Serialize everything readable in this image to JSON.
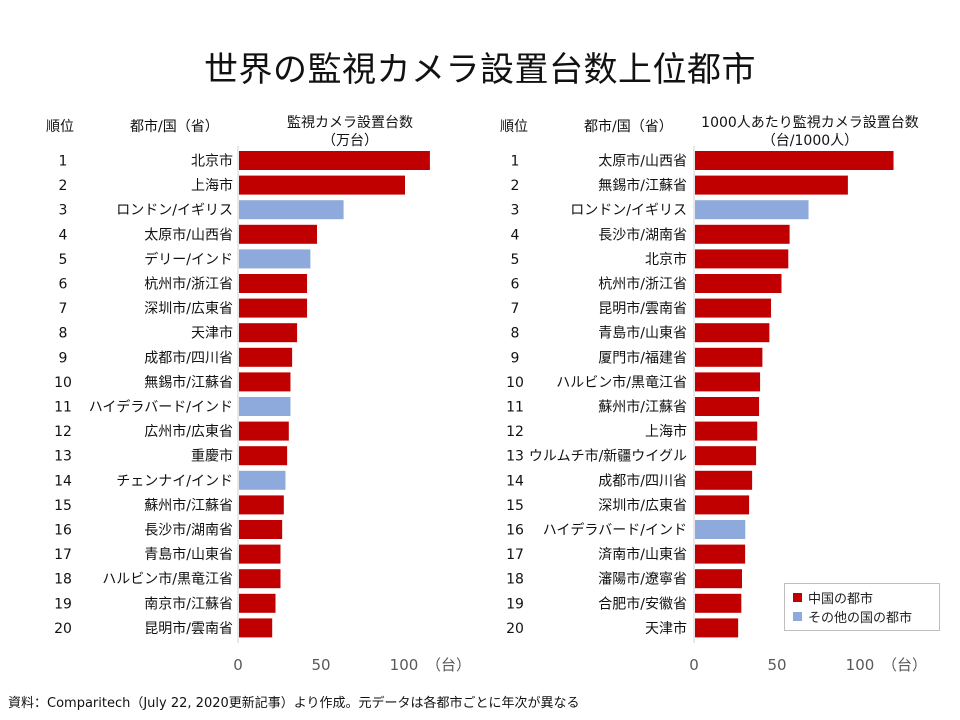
{
  "title": "世界の監視カメラ設置台数上位都市",
  "legend": {
    "items": [
      {
        "label": "中国の都市",
        "color": "#C00000"
      },
      {
        "label": "その他の国の都市",
        "color": "#8EA9DB"
      }
    ]
  },
  "source": "資料：Comparitech（July 22, 2020更新記事）より作成。元データは各都市ごとに年次が異なる",
  "chart_data": [
    {
      "type": "bar",
      "orientation": "horizontal",
      "headers": {
        "rank": "順位",
        "city": "都市/国（省）",
        "value_line1": "監視カメラ設置台数",
        "value_line2": "（万台）"
      },
      "xlim": [
        0,
        120
      ],
      "ticks": [
        0,
        50,
        100
      ],
      "tick_labels": [
        "0",
        "50",
        "100"
      ],
      "unit": "（台）",
      "ranks": [
        "1",
        "2",
        "3",
        "4",
        "5",
        "6",
        "7",
        "8",
        "9",
        "10",
        "11",
        "12",
        "13",
        "14",
        "15",
        "16",
        "17",
        "18",
        "19",
        "20"
      ],
      "categories": [
        "北京市",
        "上海市",
        "ロンドン/イギリス",
        "太原市/山西省",
        "デリー/インド",
        "杭州市/浙江省",
        "深圳市/広東省",
        "天津市",
        "成都市/四川省",
        "無錫市/江蘇省",
        "ハイデラバード/インド",
        "広州市/広東省",
        "重慶市",
        "チェンナイ/インド",
        "蘇州市/江蘇省",
        "長沙市/湖南省",
        "青島市/山東省",
        "ハルビン市/黒竜江省",
        "南京市/江蘇省",
        "昆明市/雲南省"
      ],
      "values": [
        115,
        100,
        63,
        47,
        43,
        41,
        41,
        35,
        32,
        31,
        31,
        30,
        29,
        28,
        27,
        26,
        25,
        25,
        22,
        20
      ],
      "group": [
        "cn",
        "cn",
        "other",
        "cn",
        "other",
        "cn",
        "cn",
        "cn",
        "cn",
        "cn",
        "other",
        "cn",
        "cn",
        "other",
        "cn",
        "cn",
        "cn",
        "cn",
        "cn",
        "cn"
      ]
    },
    {
      "type": "bar",
      "orientation": "horizontal",
      "headers": {
        "rank": "順位",
        "city": "都市/国（省）",
        "value_line1": "1000人あたり監視カメラ設置台数",
        "value_line2": "（台/1000人）"
      },
      "xlim": [
        0,
        120
      ],
      "ticks": [
        0,
        50,
        100
      ],
      "tick_labels": [
        "0",
        "50",
        "100"
      ],
      "unit": "（台）",
      "ranks": [
        "1",
        "2",
        "3",
        "4",
        "5",
        "6",
        "7",
        "8",
        "9",
        "10",
        "11",
        "12",
        "13",
        "14",
        "15",
        "16",
        "17",
        "18",
        "19",
        "20"
      ],
      "categories": [
        "太原市/山西省",
        "無錫市/江蘇省",
        "ロンドン/イギリス",
        "長沙市/湖南省",
        "北京市",
        "杭州市/浙江省",
        "昆明市/雲南省",
        "青島市/山東省",
        "厦門市/福建省",
        "ハルビン市/黒竜江省",
        "蘇州市/江蘇省",
        "上海市",
        "ウルムチ市/新疆ウイグル",
        "成都市/四川省",
        "深圳市/広東省",
        "ハイデラバード/インド",
        "済南市/山東省",
        "瀋陽市/遼寧省",
        "合肥市/安徽省",
        "天津市"
      ],
      "values": [
        119.6,
        92.1,
        68.4,
        57.0,
        56.2,
        52.1,
        45.8,
        44.8,
        40.6,
        39.2,
        38.6,
        37.5,
        36.8,
        34.4,
        32.6,
        30.3,
        30.2,
        28.3,
        27.9,
        26.0
      ],
      "group": [
        "cn",
        "cn",
        "other",
        "cn",
        "cn",
        "cn",
        "cn",
        "cn",
        "cn",
        "cn",
        "cn",
        "cn",
        "cn",
        "cn",
        "cn",
        "other",
        "cn",
        "cn",
        "cn",
        "cn"
      ]
    }
  ]
}
